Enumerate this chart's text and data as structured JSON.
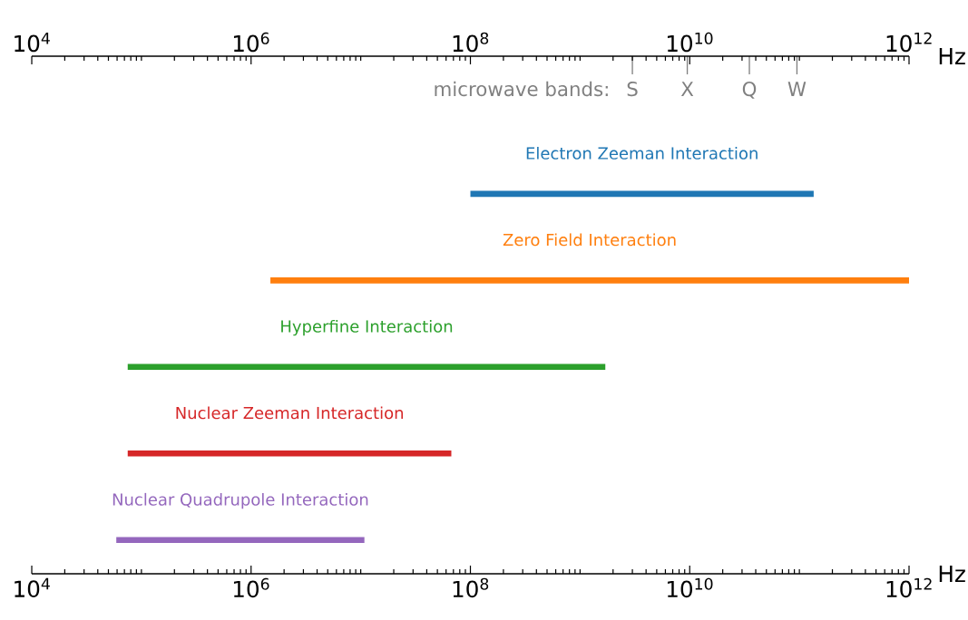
{
  "chart_data": {
    "type": "bar",
    "orientation": "horizontal",
    "log": "x",
    "categories": [
      "Electron Zeeman Interaction",
      "Zero Field Interaction",
      "Hyperfine Interaction",
      "Nuclear Zeeman Interaction",
      "Nuclear Quadrupole Interaction"
    ],
    "base": [
      100000000,
      1500000,
      75000,
      75000,
      59000
    ],
    "values": [
      134900000000,
      999998500000,
      1699925000,
      66925000,
      10741000
    ],
    "colors": [
      "#1f77b4",
      "#ff7f0e",
      "#2ca02c",
      "#d62728",
      "#9467bd"
    ],
    "xlim": [
      10000,
      1000000000000
    ],
    "xticks": [
      {
        "value": 10000,
        "label": "10$^{4}$"
      },
      {
        "value": 1000000,
        "label": "10$^{6}$"
      },
      {
        "value": 100000000,
        "label": "10$^{8}$"
      },
      {
        "value": 10000000000,
        "label": "10$^{10}$"
      },
      {
        "value": 1000000000000,
        "label": "10$^{12}$"
      }
    ],
    "xlabel": "Hz",
    "ref_lines": [
      {
        "axis": "x",
        "value": 3000000000,
        "label": "S",
        "color": "#808080"
      },
      {
        "axis": "x",
        "value": 9500000000,
        "label": "X",
        "color": "#808080"
      },
      {
        "axis": "x",
        "value": 35000000000,
        "label": "Q",
        "color": "#808080"
      },
      {
        "axis": "x",
        "value": 95000000000,
        "label": "W",
        "color": "#808080"
      }
    ],
    "annotations": [
      "microwave bands:"
    ]
  }
}
